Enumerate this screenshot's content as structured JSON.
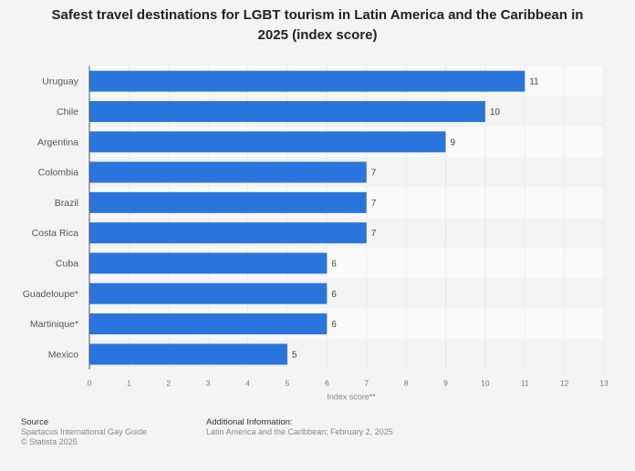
{
  "chart_data": {
    "type": "bar",
    "orientation": "horizontal",
    "title": "Safest travel destinations for LGBT tourism in Latin America and the Caribbean in 2025 (index score)",
    "categories": [
      "Uruguay",
      "Chile",
      "Argentina",
      "Colombia",
      "Brazil",
      "Costa Rica",
      "Cuba",
      "Guadeloupe*",
      "Martinique*",
      "Mexico"
    ],
    "values": [
      11,
      10,
      9,
      7,
      7,
      7,
      6,
      6,
      6,
      5
    ],
    "xlabel": "Index score**",
    "ylabel": "",
    "xlim": [
      0,
      13
    ],
    "xticks": [
      "0",
      "1",
      "2",
      "3",
      "4",
      "5",
      "6",
      "7",
      "8",
      "9",
      "10",
      "11",
      "12",
      "13"
    ],
    "grid": true,
    "bar_color": "#2876dd"
  },
  "footer": {
    "source_label": "Source",
    "source": "Spartacus International Gay Guide",
    "copyright": "© Statista 2025",
    "info_label": "Additional Information:",
    "info": "Latin America and the Caribbean; February 2, 2025"
  }
}
